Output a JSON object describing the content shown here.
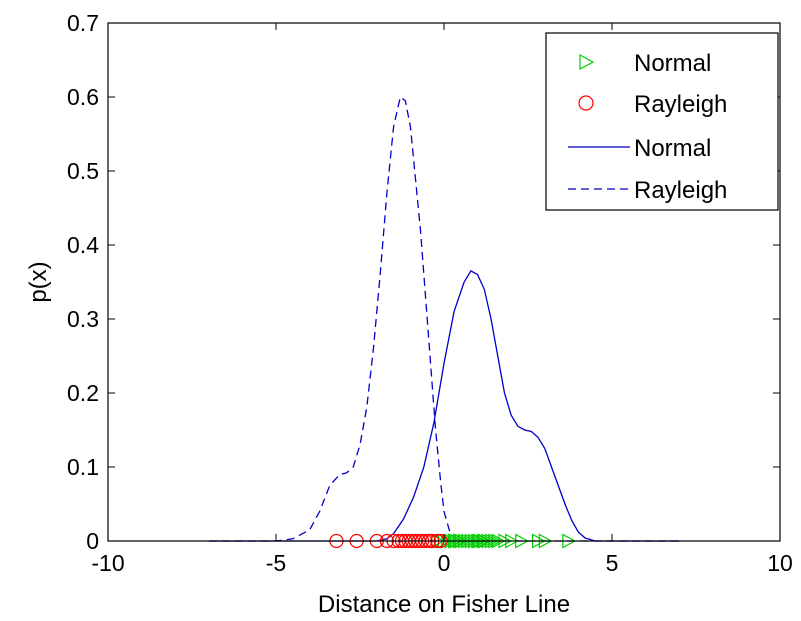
{
  "chart_data": {
    "type": "line",
    "title": "",
    "xlabel": "Distance on Fisher Line",
    "ylabel": "p(x)",
    "xlim": [
      -10,
      10
    ],
    "ylim": [
      0,
      0.7
    ],
    "xticks": [
      -10,
      -5,
      0,
      5,
      10
    ],
    "yticks": [
      0,
      0.1,
      0.2,
      0.3,
      0.4,
      0.5,
      0.6,
      0.7
    ],
    "xtick_labels": [
      "-10",
      "-5",
      "0",
      "5",
      "10"
    ],
    "ytick_labels": [
      "0",
      "0.1",
      "0.2",
      "0.3",
      "0.4",
      "0.5",
      "0.6",
      "0.7"
    ],
    "grid": false,
    "legend_position": "top-right",
    "legend": [
      {
        "label": "Normal",
        "marker": "triangle-right",
        "color": "#00cc00"
      },
      {
        "label": "Rayleigh",
        "marker": "circle",
        "color": "#ff0000"
      },
      {
        "label": "Normal",
        "line": "solid",
        "color": "#0000cc"
      },
      {
        "label": "Rayleigh",
        "line": "dashed",
        "color": "#0000cc"
      }
    ],
    "series": [
      {
        "name": "Normal",
        "kind": "points",
        "marker": "triangle-right",
        "color": "#00cc00",
        "x": [
          -0.2,
          0.0,
          0.1,
          0.2,
          0.3,
          0.35,
          0.45,
          0.5,
          0.6,
          0.7,
          0.8,
          0.9,
          1.0,
          1.05,
          1.15,
          1.2,
          1.3,
          1.4,
          1.5,
          1.6,
          1.8,
          2.0,
          2.3,
          2.8,
          3.0,
          3.7
        ],
        "y": [
          0,
          0,
          0,
          0,
          0,
          0,
          0,
          0,
          0,
          0,
          0,
          0,
          0,
          0,
          0,
          0,
          0,
          0,
          0,
          0,
          0,
          0,
          0,
          0,
          0,
          0
        ]
      },
      {
        "name": "Rayleigh",
        "kind": "points",
        "marker": "circle",
        "color": "#ff0000",
        "x": [
          -3.2,
          -2.6,
          -2.0,
          -1.7,
          -1.5,
          -1.35,
          -1.25,
          -1.15,
          -1.05,
          -0.95,
          -0.85,
          -0.75,
          -0.65,
          -0.55,
          -0.45,
          -0.35,
          -0.2,
          -0.1
        ],
        "y": [
          0,
          0,
          0,
          0,
          0,
          0,
          0,
          0,
          0,
          0,
          0,
          0,
          0,
          0,
          0,
          0,
          0,
          0
        ]
      },
      {
        "name": "Normal",
        "kind": "line",
        "dash": "solid",
        "color": "#0000cc",
        "x": [
          -7.0,
          -2.0,
          -1.7,
          -1.5,
          -1.2,
          -0.9,
          -0.6,
          -0.3,
          0.0,
          0.3,
          0.6,
          0.8,
          1.0,
          1.2,
          1.4,
          1.6,
          1.8,
          2.0,
          2.2,
          2.4,
          2.6,
          2.8,
          3.0,
          3.2,
          3.4,
          3.6,
          3.8,
          4.0,
          4.2,
          4.5,
          5.0,
          7.0
        ],
        "y": [
          0.0,
          0.0,
          0.003,
          0.01,
          0.03,
          0.06,
          0.1,
          0.16,
          0.24,
          0.31,
          0.35,
          0.365,
          0.36,
          0.34,
          0.3,
          0.25,
          0.2,
          0.17,
          0.155,
          0.15,
          0.148,
          0.14,
          0.125,
          0.1,
          0.075,
          0.05,
          0.028,
          0.012,
          0.004,
          0.0,
          0.0,
          0.0
        ]
      },
      {
        "name": "Rayleigh",
        "kind": "line",
        "dash": "dashed",
        "color": "#0000cc",
        "x": [
          -7.0,
          -5.0,
          -4.5,
          -4.0,
          -3.7,
          -3.4,
          -3.1,
          -2.9,
          -2.7,
          -2.5,
          -2.3,
          -2.1,
          -1.9,
          -1.7,
          -1.5,
          -1.3,
          -1.15,
          -1.0,
          -0.85,
          -0.7,
          -0.55,
          -0.4,
          -0.25,
          -0.1,
          0.0,
          0.2,
          0.5,
          1.0,
          7.0
        ],
        "y": [
          0.0,
          0.0,
          0.003,
          0.015,
          0.04,
          0.075,
          0.09,
          0.092,
          0.1,
          0.13,
          0.18,
          0.26,
          0.36,
          0.47,
          0.56,
          0.6,
          0.595,
          0.56,
          0.49,
          0.42,
          0.33,
          0.24,
          0.15,
          0.08,
          0.04,
          0.008,
          0.0,
          0.0,
          0.0
        ]
      }
    ]
  }
}
